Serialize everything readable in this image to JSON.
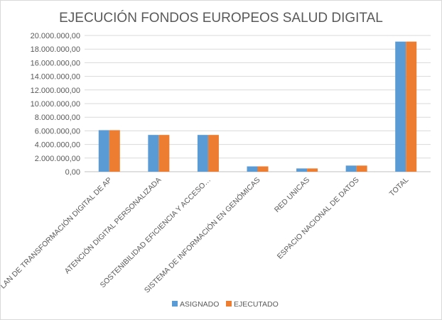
{
  "chart_data": {
    "type": "bar",
    "title": "EJECUCIÓN FONDOS EUROPEOS SALUD DIGITAL",
    "categories": [
      "PLAN DE TRANSFORMACIÓN DIGITAL DE AP",
      "ATENCIÓN DIGITAL PERSONALIZADA",
      "SOSTENIBILIDAD EFICIENCIA Y ACCESO…",
      "SISTEMA DE INFORMACIÓN EN GENÓMICAS",
      "RED UNICAS",
      "ESPACIO NACIONAL DE DATOS",
      "TOTAL"
    ],
    "series": [
      {
        "name": "ASIGNADO",
        "color": "#5b9bd5",
        "values": [
          6100000,
          5400000,
          5400000,
          780000,
          480000,
          900000,
          19100000
        ]
      },
      {
        "name": "EJECUTADO",
        "color": "#ed7d31",
        "values": [
          6100000,
          5400000,
          5400000,
          780000,
          480000,
          900000,
          19100000
        ]
      }
    ],
    "yticks": [
      "0,00",
      "2.000.000,00",
      "4.000.000,00",
      "6.000.000,00",
      "8.000.000,00",
      "10.000.000,00",
      "12.000.000,00",
      "14.000.000,00",
      "16.000.000,00",
      "18.000.000,00",
      "20.000.000,00"
    ],
    "ylim": [
      0,
      20000000
    ],
    "grid": true,
    "legend": "bottom"
  }
}
